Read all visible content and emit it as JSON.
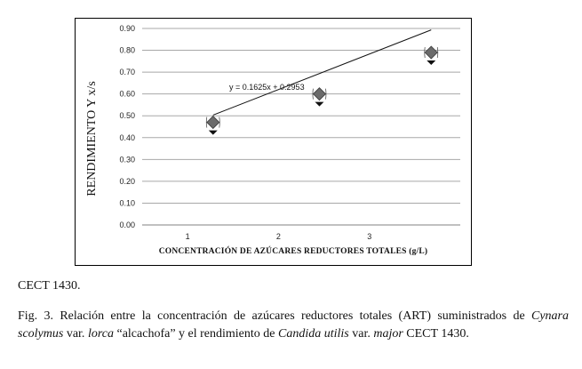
{
  "chart_data": {
    "type": "scatter",
    "xlabel": "CONCENTRACIÓN DE AZÚCARES REDUCTORES TOTALES (g/L)",
    "ylabel": "RENDIMIENTO Y x/s",
    "x_ticks": [
      "1",
      "2",
      "3"
    ],
    "y_ticks": [
      "0.00",
      "0.10",
      "0.20",
      "0.30",
      "0.40",
      "0.50",
      "0.60",
      "0.70",
      "0.80",
      "0.90"
    ],
    "ylim": [
      0,
      0.9
    ],
    "xlim": [
      0.5,
      4.0
    ],
    "grid": "horizontal",
    "points": [
      {
        "x": 1.28,
        "y": 0.47
      },
      {
        "x": 2.45,
        "y": 0.6
      },
      {
        "x": 3.68,
        "y": 0.79
      }
    ],
    "trendline": {
      "slope": 0.1625,
      "intercept": 0.2953,
      "label": "y = 0.1625x + 0.2953"
    },
    "marker_color": "#6b6b6b"
  },
  "text": {
    "cect": "CECT 1430.",
    "caption_a": "Fig. 3. Relación entre la concentración de azúcares reductores totales (ART) suministrados de ",
    "caption_species1": "Cynara scolymus",
    "caption_b": " var. ",
    "caption_var1": "lorca",
    "caption_c": " “alcachofa” y el rendimiento de ",
    "caption_species2": "Candida utilis",
    "caption_d": " var. ",
    "caption_var2": "major",
    "caption_e": " CECT 1430."
  }
}
